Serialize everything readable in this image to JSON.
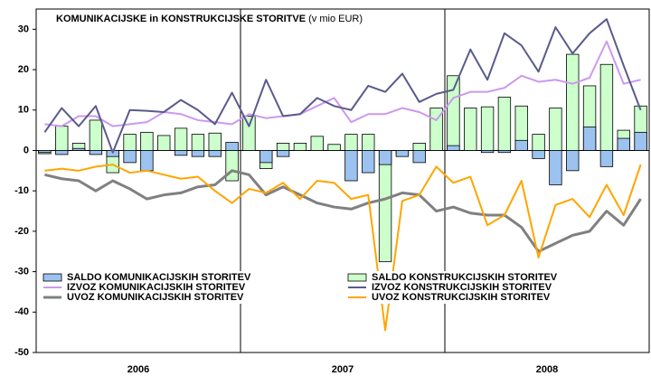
{
  "chart_data": {
    "type": "bar-line",
    "title": "KOMUNIKACIJSKE in KONSTRUKCIJSKE STORITVE",
    "unit": "(v mio EUR)",
    "categories": [
      null,
      null,
      null,
      null,
      null,
      null,
      null,
      null,
      null,
      null,
      null,
      null,
      null,
      null,
      null,
      null,
      null,
      null,
      null,
      null,
      null,
      null,
      null,
      null,
      null,
      null,
      null,
      null,
      null,
      null,
      null,
      null,
      null,
      null,
      null,
      null
    ],
    "year_labels": [
      "2006",
      "2007",
      "2008"
    ],
    "months_per_year": 12,
    "ylim": [
      -50,
      35
    ],
    "yticks": [
      30,
      20,
      10,
      0,
      -10,
      -20,
      -30,
      -40,
      -50
    ],
    "grid": false,
    "series": [
      {
        "name": "SALDO KOMUNIKACIJSKIH STORITEV",
        "kind": "bar",
        "color": "#9cc3ef",
        "values": [
          -0.5,
          -1,
          0.5,
          -1,
          -1.5,
          -3,
          -5,
          0,
          -1.2,
          -1.5,
          -1.5,
          2,
          0,
          -3,
          -1.5,
          0,
          0,
          0,
          -7.5,
          -5.5,
          -3.5,
          -1.5,
          -3,
          0,
          1.2,
          0,
          -0.5,
          -0.5,
          2.5,
          -2,
          -8.5,
          -5,
          5.8,
          -4,
          3,
          4.5
        ]
      },
      {
        "name": "SALDO KONSTRUKCIJSKIH STORITEV",
        "kind": "bar",
        "color": "#ccffcc",
        "values": [
          -0.8,
          6,
          1.8,
          7.5,
          -5.5,
          4,
          4.5,
          3.7,
          5.5,
          4,
          4.3,
          -7.5,
          8.5,
          -4.5,
          1.8,
          1.8,
          3.5,
          1.5,
          4,
          4,
          -27.5,
          -1,
          1.8,
          10.5,
          18.5,
          10.5,
          10.8,
          13.2,
          11,
          4,
          10.5,
          23.8,
          16,
          21.3,
          5,
          11
        ]
      },
      {
        "name": "IZVOZ KOMUNIKACIJSKIH STORITEV",
        "kind": "line",
        "color": "#cc99ee",
        "values": [
          6.5,
          6,
          8.5,
          8.5,
          6,
          6.5,
          7,
          9.5,
          9,
          7.5,
          7,
          6.5,
          9,
          8,
          8.5,
          9,
          11,
          13,
          7,
          9,
          9,
          10.5,
          9.5,
          7.5,
          13,
          14.5,
          14.5,
          15.5,
          18.5,
          17,
          17.5,
          16.5,
          18,
          27,
          16.5,
          17.5
        ]
      },
      {
        "name": "IZVOZ KONSTRUKCIJSKIH STORITEV",
        "kind": "line",
        "color": "#5a5a8c",
        "values": [
          4.5,
          10.5,
          6,
          11,
          -0.5,
          10,
          9.8,
          9.5,
          12.5,
          10,
          6.5,
          14.3,
          6,
          17.5,
          8.5,
          9,
          13,
          11,
          10,
          16,
          14.5,
          19,
          12,
          14,
          15,
          25,
          17.5,
          29,
          26,
          19.5,
          30.5,
          24,
          29,
          32.5,
          21,
          10
        ]
      },
      {
        "name": "UVOZ KOMUNIKACIJSKIH STORITEV",
        "kind": "line",
        "color": "#808080",
        "values": [
          -6,
          -7,
          -7.5,
          -10,
          -7.5,
          -9.5,
          -12,
          -11,
          -10.5,
          -9,
          -8.5,
          -5,
          -6,
          -11,
          -9,
          -11,
          -13,
          -14,
          -14.5,
          -13,
          -12,
          -10.5,
          -11,
          -15,
          -14,
          -15.5,
          -16,
          -16,
          -19,
          -25,
          -23,
          -21,
          -20,
          -15,
          -18.5,
          -12
        ]
      },
      {
        "name": "UVOZ KONSTRUKCIJSKIH STORITEV",
        "kind": "line",
        "color": "#ffa500",
        "values": [
          -5,
          -4.5,
          -5,
          -4,
          -3.5,
          -5.5,
          -5,
          -6,
          -7,
          -6.5,
          -10,
          -13,
          -9.5,
          -10.5,
          -8,
          -12,
          -7.5,
          -8,
          -12,
          -11,
          -44.5,
          -12.5,
          -11,
          -4,
          -8,
          -6.5,
          -18.5,
          -16,
          -7.5,
          -26.5,
          -13.5,
          -12,
          -16.5,
          -8.5,
          -16,
          -3.5
        ]
      }
    ]
  }
}
